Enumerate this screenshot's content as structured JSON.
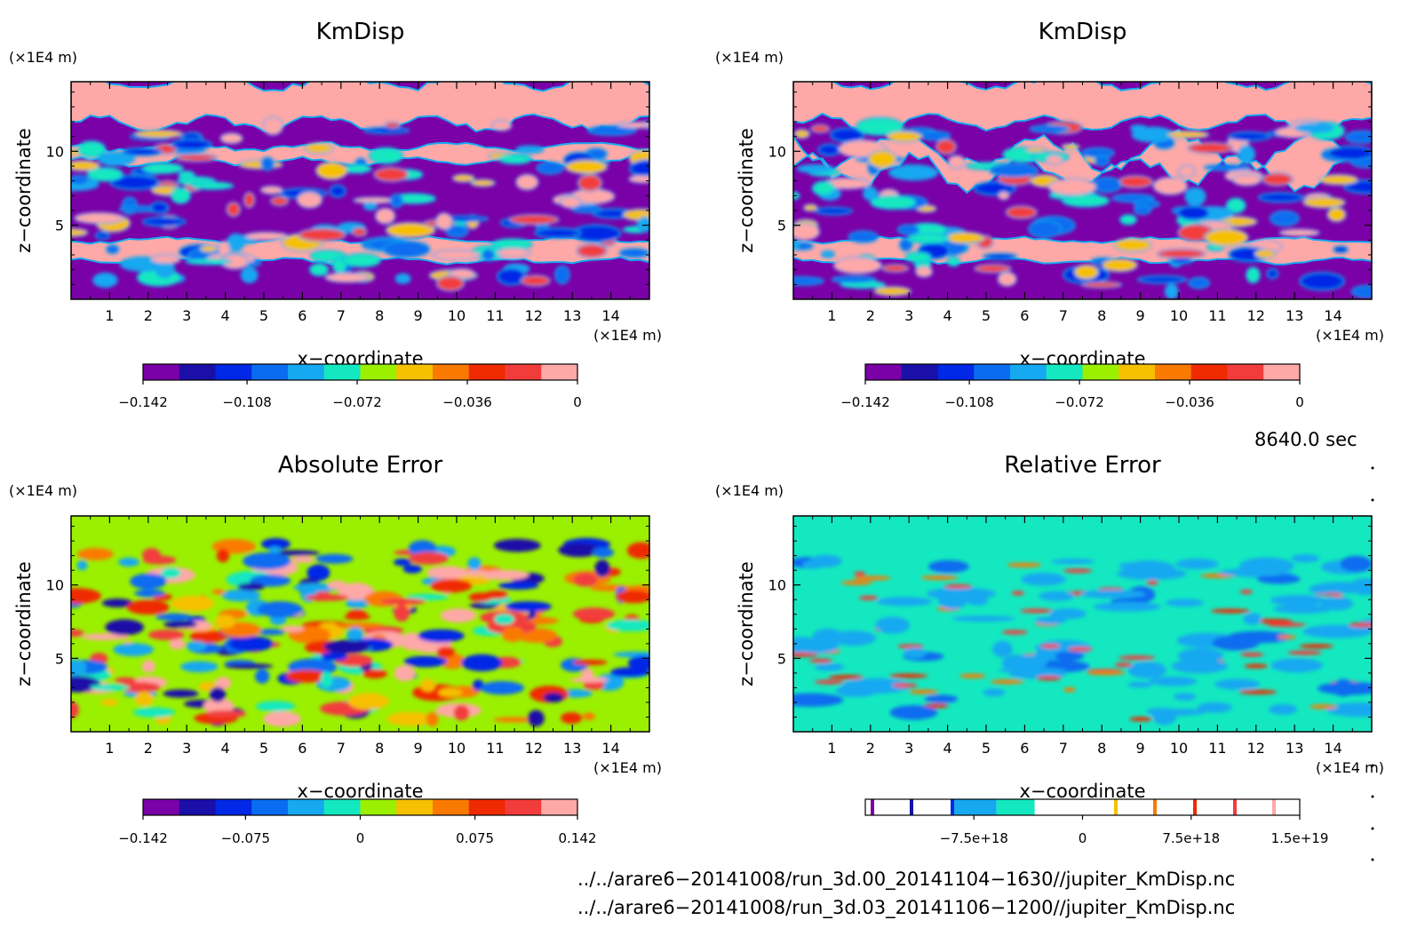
{
  "chart_data": [
    {
      "type": "heatmap",
      "title": "KmDisp",
      "xlabel": "x−coordinate",
      "ylabel": "z−coordinate",
      "x_unit": "(×1E4 m)",
      "y_unit": "(×1E4 m)",
      "xlim": [
        0,
        15
      ],
      "ylim": [
        0,
        14.7
      ],
      "x_ticks": [
        "1",
        "2",
        "3",
        "4",
        "5",
        "6",
        "7",
        "8",
        "9",
        "10",
        "11",
        "12",
        "13",
        "14"
      ],
      "y_ticks": [
        "5",
        "10"
      ],
      "colorbar": {
        "colors": [
          "#7a00a8",
          "#1a0fa8",
          "#0028e6",
          "#0a6cf0",
          "#16a8f0",
          "#14e8c0",
          "#9af000",
          "#f5c000",
          "#fa7a00",
          "#f02a00",
          "#f23c3c",
          "#ffa8a8"
        ],
        "tick_labels": [
          "−0.142",
          "−0.108",
          "−0.072",
          "−0.036",
          "0"
        ],
        "range": [
          -0.142,
          0
        ]
      }
    },
    {
      "type": "heatmap",
      "title": "KmDisp",
      "xlabel": "x−coordinate",
      "ylabel": "z−coordinate",
      "x_unit": "(×1E4 m)",
      "y_unit": "(×1E4 m)",
      "xlim": [
        0,
        15
      ],
      "ylim": [
        0,
        14.7
      ],
      "x_ticks": [
        "1",
        "2",
        "3",
        "4",
        "5",
        "6",
        "7",
        "8",
        "9",
        "10",
        "11",
        "12",
        "13",
        "14"
      ],
      "y_ticks": [
        "5",
        "10"
      ],
      "colorbar": {
        "colors": [
          "#7a00a8",
          "#1a0fa8",
          "#0028e6",
          "#0a6cf0",
          "#16a8f0",
          "#14e8c0",
          "#9af000",
          "#f5c000",
          "#fa7a00",
          "#f02a00",
          "#f23c3c",
          "#ffa8a8"
        ],
        "tick_labels": [
          "−0.142",
          "−0.108",
          "−0.072",
          "−0.036",
          "0"
        ],
        "range": [
          -0.142,
          0
        ]
      }
    },
    {
      "type": "heatmap",
      "title": "Absolute Error",
      "xlabel": "x−coordinate",
      "ylabel": "z−coordinate",
      "x_unit": "(×1E4 m)",
      "y_unit": "(×1E4 m)",
      "xlim": [
        0,
        15
      ],
      "ylim": [
        0,
        14.7
      ],
      "x_ticks": [
        "1",
        "2",
        "3",
        "4",
        "5",
        "6",
        "7",
        "8",
        "9",
        "10",
        "11",
        "12",
        "13",
        "14"
      ],
      "y_ticks": [
        "5",
        "10"
      ],
      "colorbar": {
        "colors": [
          "#7a00a8",
          "#1a0fa8",
          "#0028e6",
          "#0a6cf0",
          "#16a8f0",
          "#14e8c0",
          "#9af000",
          "#f5c000",
          "#fa7a00",
          "#f02a00",
          "#f23c3c",
          "#ffa8a8"
        ],
        "tick_labels": [
          "−0.142",
          "−0.075",
          "0",
          "0.075",
          "0.142"
        ],
        "range": [
          -0.142,
          0.142
        ]
      }
    },
    {
      "type": "heatmap",
      "title": "Relative Error",
      "xlabel": "x−coordinate",
      "ylabel": "z−coordinate",
      "x_unit": "(×1E4 m)",
      "y_unit": "(×1E4 m)",
      "xlim": [
        0,
        15
      ],
      "ylim": [
        0,
        14.7
      ],
      "x_ticks": [
        "1",
        "2",
        "3",
        "4",
        "5",
        "6",
        "7",
        "8",
        "9",
        "10",
        "11",
        "12",
        "13",
        "14"
      ],
      "y_ticks": [
        "5",
        "10"
      ],
      "colorbar": {
        "colors": [
          "#7a00a8",
          "#1a0fa8",
          "#0028e6",
          "#0a6cf0",
          "#16a8f0",
          "#14e8c0",
          "#9af000",
          "#f5c000",
          "#fa7a00",
          "#f02a00",
          "#f23c3c",
          "#ffa8a8"
        ],
        "tick_labels": [
          "−7.5e+18",
          "0",
          "7.5e+18",
          "1.5e+19"
        ],
        "range": [
          -1.5e+19,
          1.5e+19
        ]
      }
    }
  ],
  "time_label": "8640.0 sec",
  "footer": {
    "line1": "../../arare6−20141008/run_3d.00_20141104−1630//jupiter_KmDisp.nc",
    "line2": "../../arare6−20141008/run_3d.03_20141106−1200//jupiter_KmDisp.nc"
  }
}
